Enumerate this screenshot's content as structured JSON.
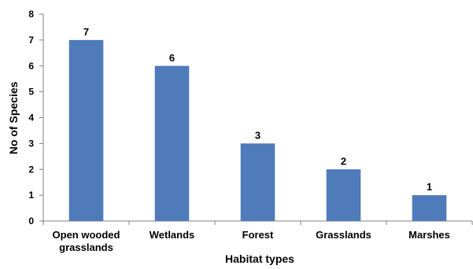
{
  "chart_data": {
    "type": "bar",
    "categories": [
      [
        "Open wooded",
        "grasslands"
      ],
      [
        "Wetlands"
      ],
      [
        "Forest"
      ],
      [
        "Grasslands"
      ],
      [
        "Marshes"
      ]
    ],
    "values": [
      7,
      6,
      3,
      2,
      1
    ],
    "data_labels": [
      "7",
      "6",
      "3",
      "2",
      "1"
    ],
    "title": "",
    "xlabel": "Habitat types",
    "ylabel": "No of Species",
    "ylim": [
      0,
      8
    ],
    "yticks": [
      "0",
      "1",
      "2",
      "3",
      "4",
      "5",
      "6",
      "7",
      "8"
    ],
    "grid": false,
    "legend": "none",
    "bar_color": "#4F7BBA"
  }
}
